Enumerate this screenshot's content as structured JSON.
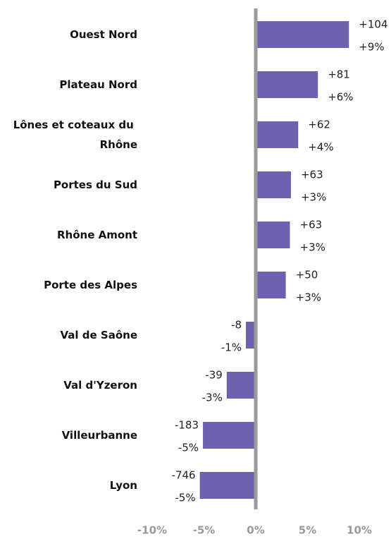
{
  "chart_data": {
    "type": "bar",
    "orientation": "horizontal",
    "categories": [
      "Ouest Nord",
      "Plateau Nord",
      "Lônes et coteaux du Rhône",
      "Portes du Sud",
      "Rhône Amont",
      "Porte des Alpes",
      "Val de Saône",
      "Val d'Yzeron",
      "Villeurbanne",
      "Lyon"
    ],
    "values": [
      9.0,
      6.0,
      4.1,
      3.4,
      3.3,
      2.9,
      -0.95,
      -2.8,
      -5.1,
      -5.4
    ],
    "value_labels": [
      "+9%",
      "+6%",
      "+4%",
      "+3%",
      "+3%",
      "+3%",
      "-1%",
      "-3%",
      "-5%",
      "-5%"
    ],
    "changes": [
      104,
      81,
      62,
      63,
      63,
      50,
      -8,
      -39,
      -183,
      -746
    ],
    "change_labels": [
      "+104",
      "+81",
      "+62",
      "+63",
      "+63",
      "+50",
      "-8",
      "-39",
      "-183",
      "-746"
    ],
    "color": "#6e62b0",
    "xlim": [
      -12.3,
      12.6
    ],
    "xticks": [
      {
        "value": -10,
        "label": "-10%"
      },
      {
        "value": -5,
        "label": "-5%"
      },
      {
        "value": 0,
        "label": "0%"
      },
      {
        "value": 5,
        "label": "5%"
      },
      {
        "value": 10,
        "label": "10%"
      }
    ]
  }
}
